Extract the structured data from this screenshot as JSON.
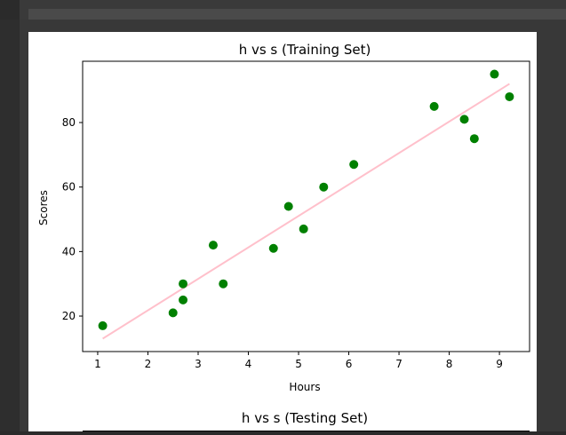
{
  "chart_data": [
    {
      "type": "scatter",
      "title": "h vs s (Training Set)",
      "xlabel": "Hours",
      "ylabel": "Scores",
      "xlim": [
        0.7,
        9.6
      ],
      "ylim": [
        9,
        99
      ],
      "xticks": [
        1,
        2,
        3,
        4,
        5,
        6,
        7,
        8,
        9
      ],
      "yticks": [
        20,
        40,
        60,
        80
      ],
      "grid": false,
      "series": [
        {
          "kind": "scatter",
          "color": "#008000",
          "points": [
            {
              "x": 1.1,
              "y": 17
            },
            {
              "x": 2.5,
              "y": 21
            },
            {
              "x": 2.7,
              "y": 25
            },
            {
              "x": 2.7,
              "y": 30
            },
            {
              "x": 3.3,
              "y": 42
            },
            {
              "x": 3.5,
              "y": 30
            },
            {
              "x": 4.5,
              "y": 41
            },
            {
              "x": 4.8,
              "y": 54
            },
            {
              "x": 5.1,
              "y": 47
            },
            {
              "x": 5.5,
              "y": 60
            },
            {
              "x": 6.1,
              "y": 67
            },
            {
              "x": 7.7,
              "y": 85
            },
            {
              "x": 8.3,
              "y": 81
            },
            {
              "x": 8.5,
              "y": 75
            },
            {
              "x": 8.9,
              "y": 95
            },
            {
              "x": 9.2,
              "y": 88
            }
          ]
        },
        {
          "kind": "line",
          "color": "#ffc0cb",
          "points": [
            {
              "x": 1.1,
              "y": 13
            },
            {
              "x": 9.2,
              "y": 92
            }
          ]
        }
      ]
    },
    {
      "type": "scatter",
      "title": "h vs s (Testing Set)"
    }
  ]
}
